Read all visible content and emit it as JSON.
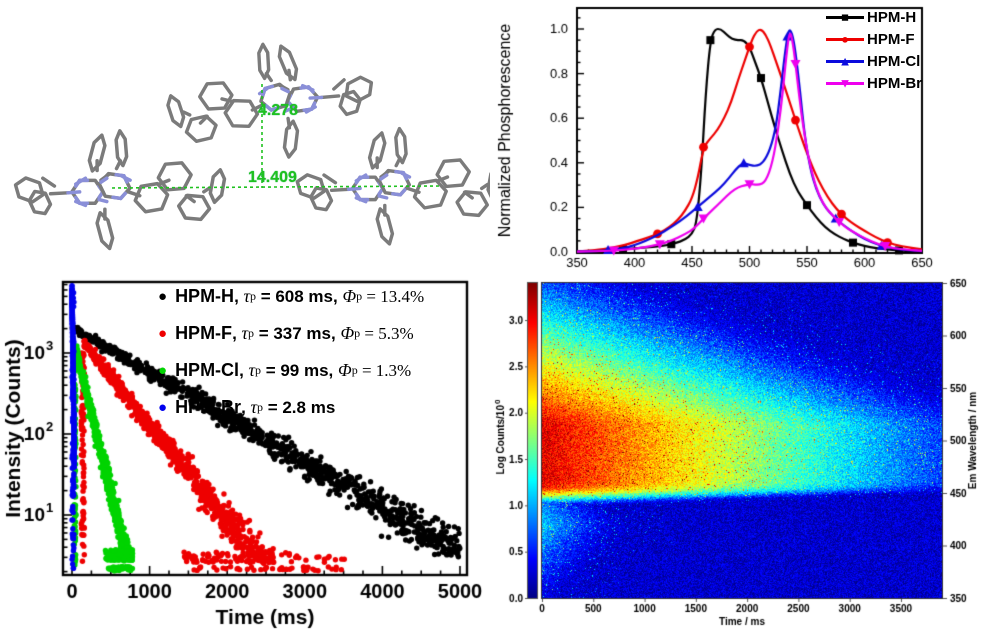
{
  "figure": {
    "background": "#ffffff"
  },
  "panels": {
    "molecule": {
      "distances": {
        "vertical": "4.278",
        "horizontal": "14.409"
      },
      "label_color": "#1fc11f",
      "bond_color": "#7b7b7b",
      "nitrogen_color": "#8a8fd8",
      "measure_line_color": "#1fc11f"
    }
  },
  "chart_data": [
    {
      "id": "spectra",
      "type": "line",
      "title": "",
      "xlabel": "",
      "ylabel": "Normalized Phosphorescence",
      "xlim": [
        350,
        650
      ],
      "ylim": [
        0.0,
        1.09
      ],
      "xticks": [
        350,
        400,
        450,
        500,
        550,
        600,
        650
      ],
      "yticks": [
        "0.0",
        "0.2",
        "0.4",
        "0.6",
        "0.8",
        "1.0"
      ],
      "grid": false,
      "legend_position": "top-right",
      "series": [
        {
          "name": "HPM-H",
          "color": "#000000",
          "marker": "square",
          "marker_glyph": "■",
          "x": [
            350,
            368,
            380,
            392,
            404,
            416,
            428,
            436,
            444,
            450,
            454,
            458,
            462,
            466,
            470,
            475,
            480,
            485,
            490,
            495,
            500,
            505,
            510,
            516,
            522,
            528,
            535,
            542,
            550,
            558,
            566,
            574,
            582,
            590,
            600,
            610,
            622,
            636,
            650
          ],
          "y": [
            0.003,
            0.006,
            0.009,
            0.013,
            0.018,
            0.023,
            0.03,
            0.04,
            0.055,
            0.08,
            0.13,
            0.35,
            0.72,
            0.95,
            1.0,
            1.0,
            0.975,
            0.955,
            0.95,
            0.95,
            0.92,
            0.85,
            0.78,
            0.67,
            0.56,
            0.46,
            0.35,
            0.27,
            0.21,
            0.155,
            0.11,
            0.08,
            0.058,
            0.042,
            0.026,
            0.017,
            0.01,
            0.005,
            0.003
          ],
          "marker_x": [
            390,
            432,
            466,
            510,
            550,
            590,
            630
          ]
        },
        {
          "name": "HPM-F",
          "color": "#ee0000",
          "marker": "circle",
          "marker_glyph": "●",
          "x": [
            350,
            366,
            380,
            392,
            402,
            412,
            422,
            430,
            438,
            444,
            450,
            455,
            460,
            466,
            472,
            478,
            484,
            490,
            496,
            502,
            506,
            510,
            514,
            518,
            524,
            530,
            536,
            542,
            548,
            554,
            560,
            568,
            576,
            584,
            592,
            600,
            610,
            620,
            632,
            650
          ],
          "y": [
            0.002,
            0.008,
            0.018,
            0.032,
            0.048,
            0.065,
            0.085,
            0.11,
            0.145,
            0.185,
            0.24,
            0.33,
            0.47,
            0.51,
            0.545,
            0.6,
            0.67,
            0.77,
            0.86,
            0.95,
            0.99,
            1.0,
            0.975,
            0.93,
            0.84,
            0.75,
            0.655,
            0.56,
            0.47,
            0.39,
            0.32,
            0.245,
            0.19,
            0.15,
            0.12,
            0.095,
            0.065,
            0.042,
            0.025,
            0.012
          ],
          "marker_x": [
            420,
            460,
            500,
            540,
            580,
            620
          ]
        },
        {
          "name": "HPM-Cl",
          "color": "#0b0bdd",
          "marker": "triangle-up",
          "marker_glyph": "▲",
          "x": [
            350,
            368,
            378,
            390,
            400,
            410,
            420,
            430,
            440,
            450,
            458,
            466,
            474,
            482,
            488,
            494,
            500,
            506,
            512,
            518,
            523,
            527,
            531,
            534,
            537,
            540,
            544,
            548,
            553,
            558,
            564,
            570,
            576,
            583,
            590,
            600,
            612,
            624,
            638,
            650
          ],
          "y": [
            0.002,
            0.004,
            0.009,
            0.016,
            0.03,
            0.05,
            0.075,
            0.105,
            0.14,
            0.18,
            0.215,
            0.25,
            0.285,
            0.33,
            0.37,
            0.4,
            0.39,
            0.385,
            0.4,
            0.46,
            0.56,
            0.72,
            0.9,
            1.0,
            0.985,
            0.9,
            0.72,
            0.52,
            0.37,
            0.28,
            0.215,
            0.175,
            0.145,
            0.115,
            0.09,
            0.058,
            0.032,
            0.016,
            0.008,
            0.004
          ],
          "marker_x": [
            377,
            455,
            495,
            533,
            575,
            615
          ]
        },
        {
          "name": "HPM-Br",
          "color": "#ee00ee",
          "marker": "triangle-down",
          "marker_glyph": "▼",
          "x": [
            350,
            372,
            384,
            396,
            408,
            420,
            432,
            444,
            452,
            460,
            468,
            476,
            484,
            490,
            496,
            502,
            508,
            514,
            520,
            525,
            529,
            532,
            535,
            538,
            541,
            545,
            550,
            555,
            560,
            566,
            572,
            578,
            585,
            592,
            600,
            612,
            624,
            638,
            650
          ],
          "y": [
            0.002,
            0.004,
            0.007,
            0.012,
            0.02,
            0.032,
            0.05,
            0.08,
            0.105,
            0.15,
            0.19,
            0.23,
            0.27,
            0.29,
            0.3,
            0.305,
            0.3,
            0.315,
            0.4,
            0.55,
            0.72,
            0.88,
            1.0,
            0.93,
            0.8,
            0.62,
            0.455,
            0.34,
            0.26,
            0.2,
            0.165,
            0.135,
            0.105,
            0.085,
            0.062,
            0.035,
            0.018,
            0.009,
            0.005
          ],
          "marker_x": [
            382,
            422,
            460,
            500,
            540,
            578,
            618
          ]
        }
      ]
    },
    {
      "id": "decay",
      "type": "scatter",
      "xlabel": "Time (ms)",
      "ylabel": "Intensity (Counts)",
      "xlim": [
        -150,
        5150
      ],
      "xticks": [
        0,
        1000,
        2000,
        3000,
        4000,
        5000
      ],
      "ylog": true,
      "ytick_decades": [
        1,
        2,
        3
      ],
      "ylim_counts": [
        1.8,
        7600
      ],
      "legend": {
        "bullet": "●",
        "entries": [
          {
            "color": "#000000",
            "name": "HPM-H",
            "comma": ", ",
            "tau_sym": "τ",
            "tau_sub": "p",
            "tau_rest": " = 608 ms, ",
            "phi_sym": "Φ",
            "phi_sub": "p",
            "phi_rest": " = 13.4%"
          },
          {
            "color": "#ee0000",
            "name": "HPM-F",
            "comma": ", ",
            "tau_sym": "τ",
            "tau_sub": "p",
            "tau_rest": " = 337 ms, ",
            "phi_sym": "Φ",
            "phi_sub": "p",
            "phi_rest": " = 5.3%"
          },
          {
            "color": "#00d400",
            "name": "HPM-Cl",
            "comma": ", ",
            "tau_sym": "τ",
            "tau_sub": "p",
            "tau_rest": " = 99 ms, ",
            "phi_sym": "Φ",
            "phi_sub": "p",
            "phi_rest": " = 1.3%"
          },
          {
            "color": "#0000ee",
            "name": "HPM-Br",
            "comma": ", ",
            "tau_sym": "τ",
            "tau_sub": "p",
            "tau_rest": " = 2.8 ms",
            "phi_sym": "",
            "phi_sub": "",
            "phi_rest": ""
          }
        ]
      },
      "series": [
        {
          "name": "HPM-H",
          "color": "#000000",
          "amplitude": 2100,
          "tau_ms": 780,
          "t_start": 0,
          "t_end": 5000,
          "points": 1050,
          "floor": 3
        },
        {
          "name": "HPM-F",
          "color": "#ee0000",
          "amplitude": 1350,
          "tau_ms": 365,
          "t_start": 150,
          "t_end": 2600,
          "points": 850,
          "floor": 3,
          "rise": [
            118,
            160
          ],
          "tail_end": 3550
        },
        {
          "name": "HPM-Cl",
          "color": "#00d400",
          "amplitude": 1080,
          "tau_ms": 112,
          "t_start": 50,
          "t_end": 780,
          "points": 750,
          "floor": 3.2,
          "rise": [
            28,
            52
          ],
          "tail_end": 780
        },
        {
          "name": "HPM-Br",
          "color": "#0000ee",
          "amplitude": 6500,
          "tau_ms": 6,
          "t_start": 0,
          "t_end": 30,
          "points": 330,
          "floor": 2,
          "rise": [
            0,
            26
          ]
        }
      ]
    },
    {
      "id": "streak",
      "type": "heatmap",
      "xlabel": "Time / ms",
      "ylabel_right": "Em Wavelength / nm",
      "colorbar_label": "Log Counts/10",
      "colorbar_exponent": "0",
      "xlim": [
        0,
        3900
      ],
      "xticks": [
        0,
        500,
        1000,
        1500,
        2000,
        2500,
        3000,
        3500
      ],
      "ylim": [
        350,
        650
      ],
      "yticks": [
        350,
        400,
        450,
        500,
        550,
        600,
        650
      ],
      "colorbar_ticks": [
        "0.0",
        "0.5",
        "1.0",
        "1.5",
        "2.0",
        "2.5",
        "3.0"
      ],
      "colorbar_max": 3.4,
      "model": {
        "log_peak": 3.05,
        "decades_per_ms": 0.000625,
        "plateau_nm": [
          462,
          516
        ],
        "low_cutoff_nm": 454,
        "cutoff_width_nm": 2.5,
        "high_tail_decade_nm": 57,
        "leak_peak_log": 1.1,
        "leak_center_nm": 420
      },
      "colormap_jet": [
        [
          0,
          [
            0,
            0,
            131
          ]
        ],
        [
          0.125,
          [
            0,
            0,
            255
          ]
        ],
        [
          0.375,
          [
            0,
            255,
            255
          ]
        ],
        [
          0.625,
          [
            255,
            255,
            0
          ]
        ],
        [
          0.875,
          [
            255,
            0,
            0
          ]
        ],
        [
          1,
          [
            128,
            0,
            0
          ]
        ]
      ]
    }
  ]
}
